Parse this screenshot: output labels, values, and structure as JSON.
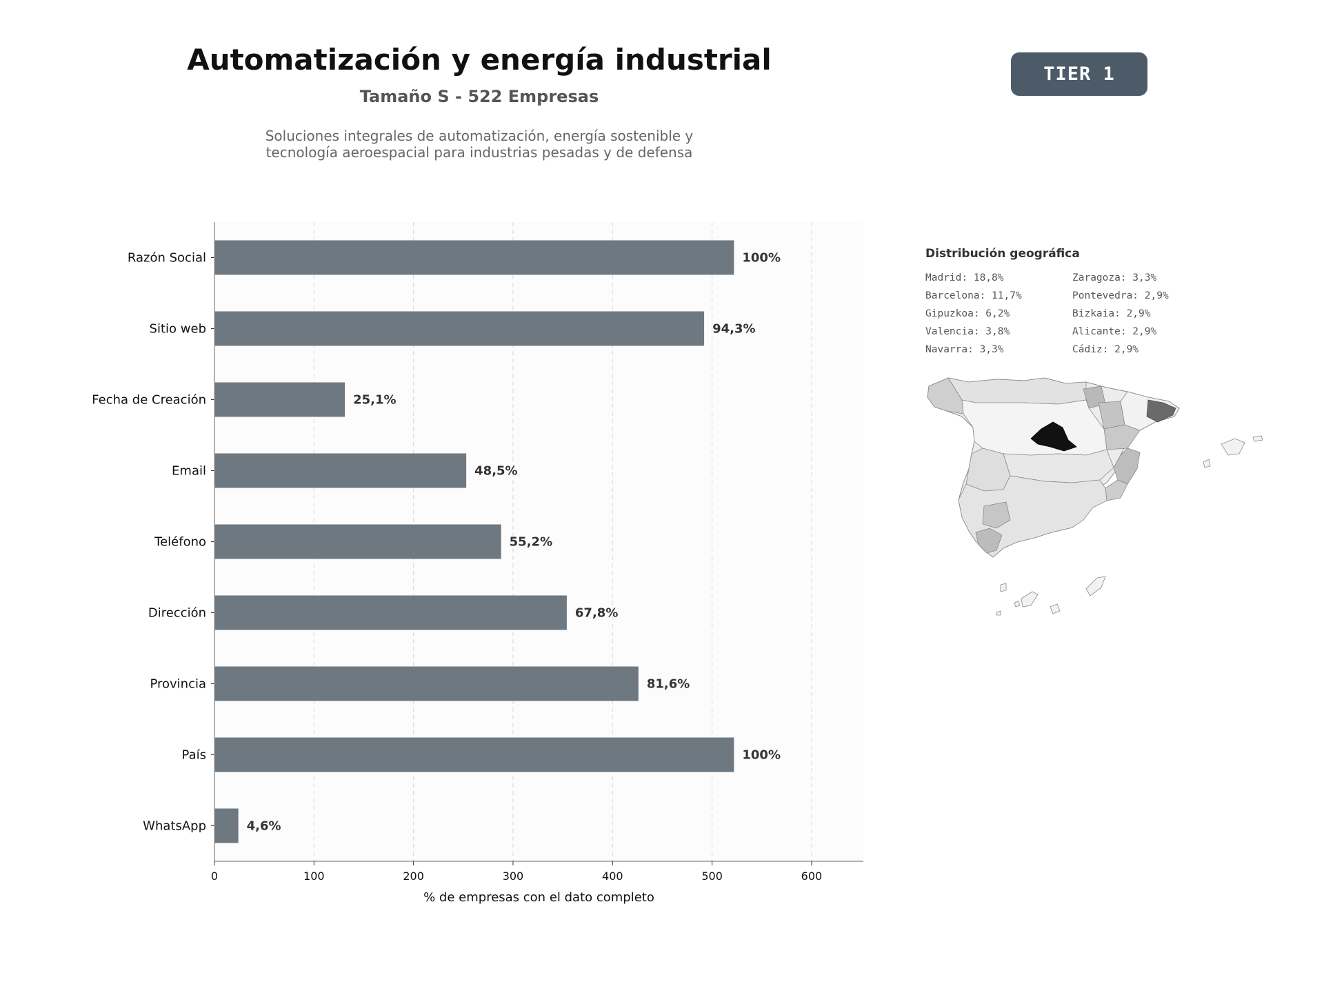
{
  "header": {
    "title": "Automatización y energía industrial",
    "subtitle": "Tamaño S - 522 Empresas",
    "description_line1": "Soluciones integrales de automatización, energía sostenible y",
    "description_line2": "tecnología aeroespacial para industrias pesadas y de defensa",
    "tier_label": "TIER 1"
  },
  "chart_data": {
    "type": "bar",
    "orientation": "horizontal",
    "categories": [
      "Razón Social",
      "Sitio web",
      "Fecha de Creación",
      "Email",
      "Teléfono",
      "Dirección",
      "Provincia",
      "País",
      "WhatsApp"
    ],
    "values": [
      522,
      492,
      131,
      253,
      288,
      354,
      426,
      522,
      24
    ],
    "data_labels": [
      "100%",
      "94,3%",
      "25,1%",
      "48,5%",
      "55,2%",
      "67,8%",
      "81,6%",
      "100%",
      "4,6%"
    ],
    "xlabel": "% de empresas con el dato completo",
    "ylabel": "",
    "xlim": [
      0,
      652
    ],
    "xticks": [
      0,
      100,
      200,
      300,
      400,
      500,
      600
    ],
    "grid": true,
    "bar_color": "#6e7881"
  },
  "geo": {
    "title": "Distribución geográfica",
    "items": [
      "Madrid: 18,8%",
      "Zaragoza: 3,3%",
      "Barcelona: 11,7%",
      "Pontevedra: 2,9%",
      "Gipuzkoa: 6,2%",
      "Bizkaia: 2,9%",
      "Valencia: 3,8%",
      "Alicante: 2,9%",
      "Navarra: 3,3%",
      "Cádiz: 2,9%"
    ]
  }
}
